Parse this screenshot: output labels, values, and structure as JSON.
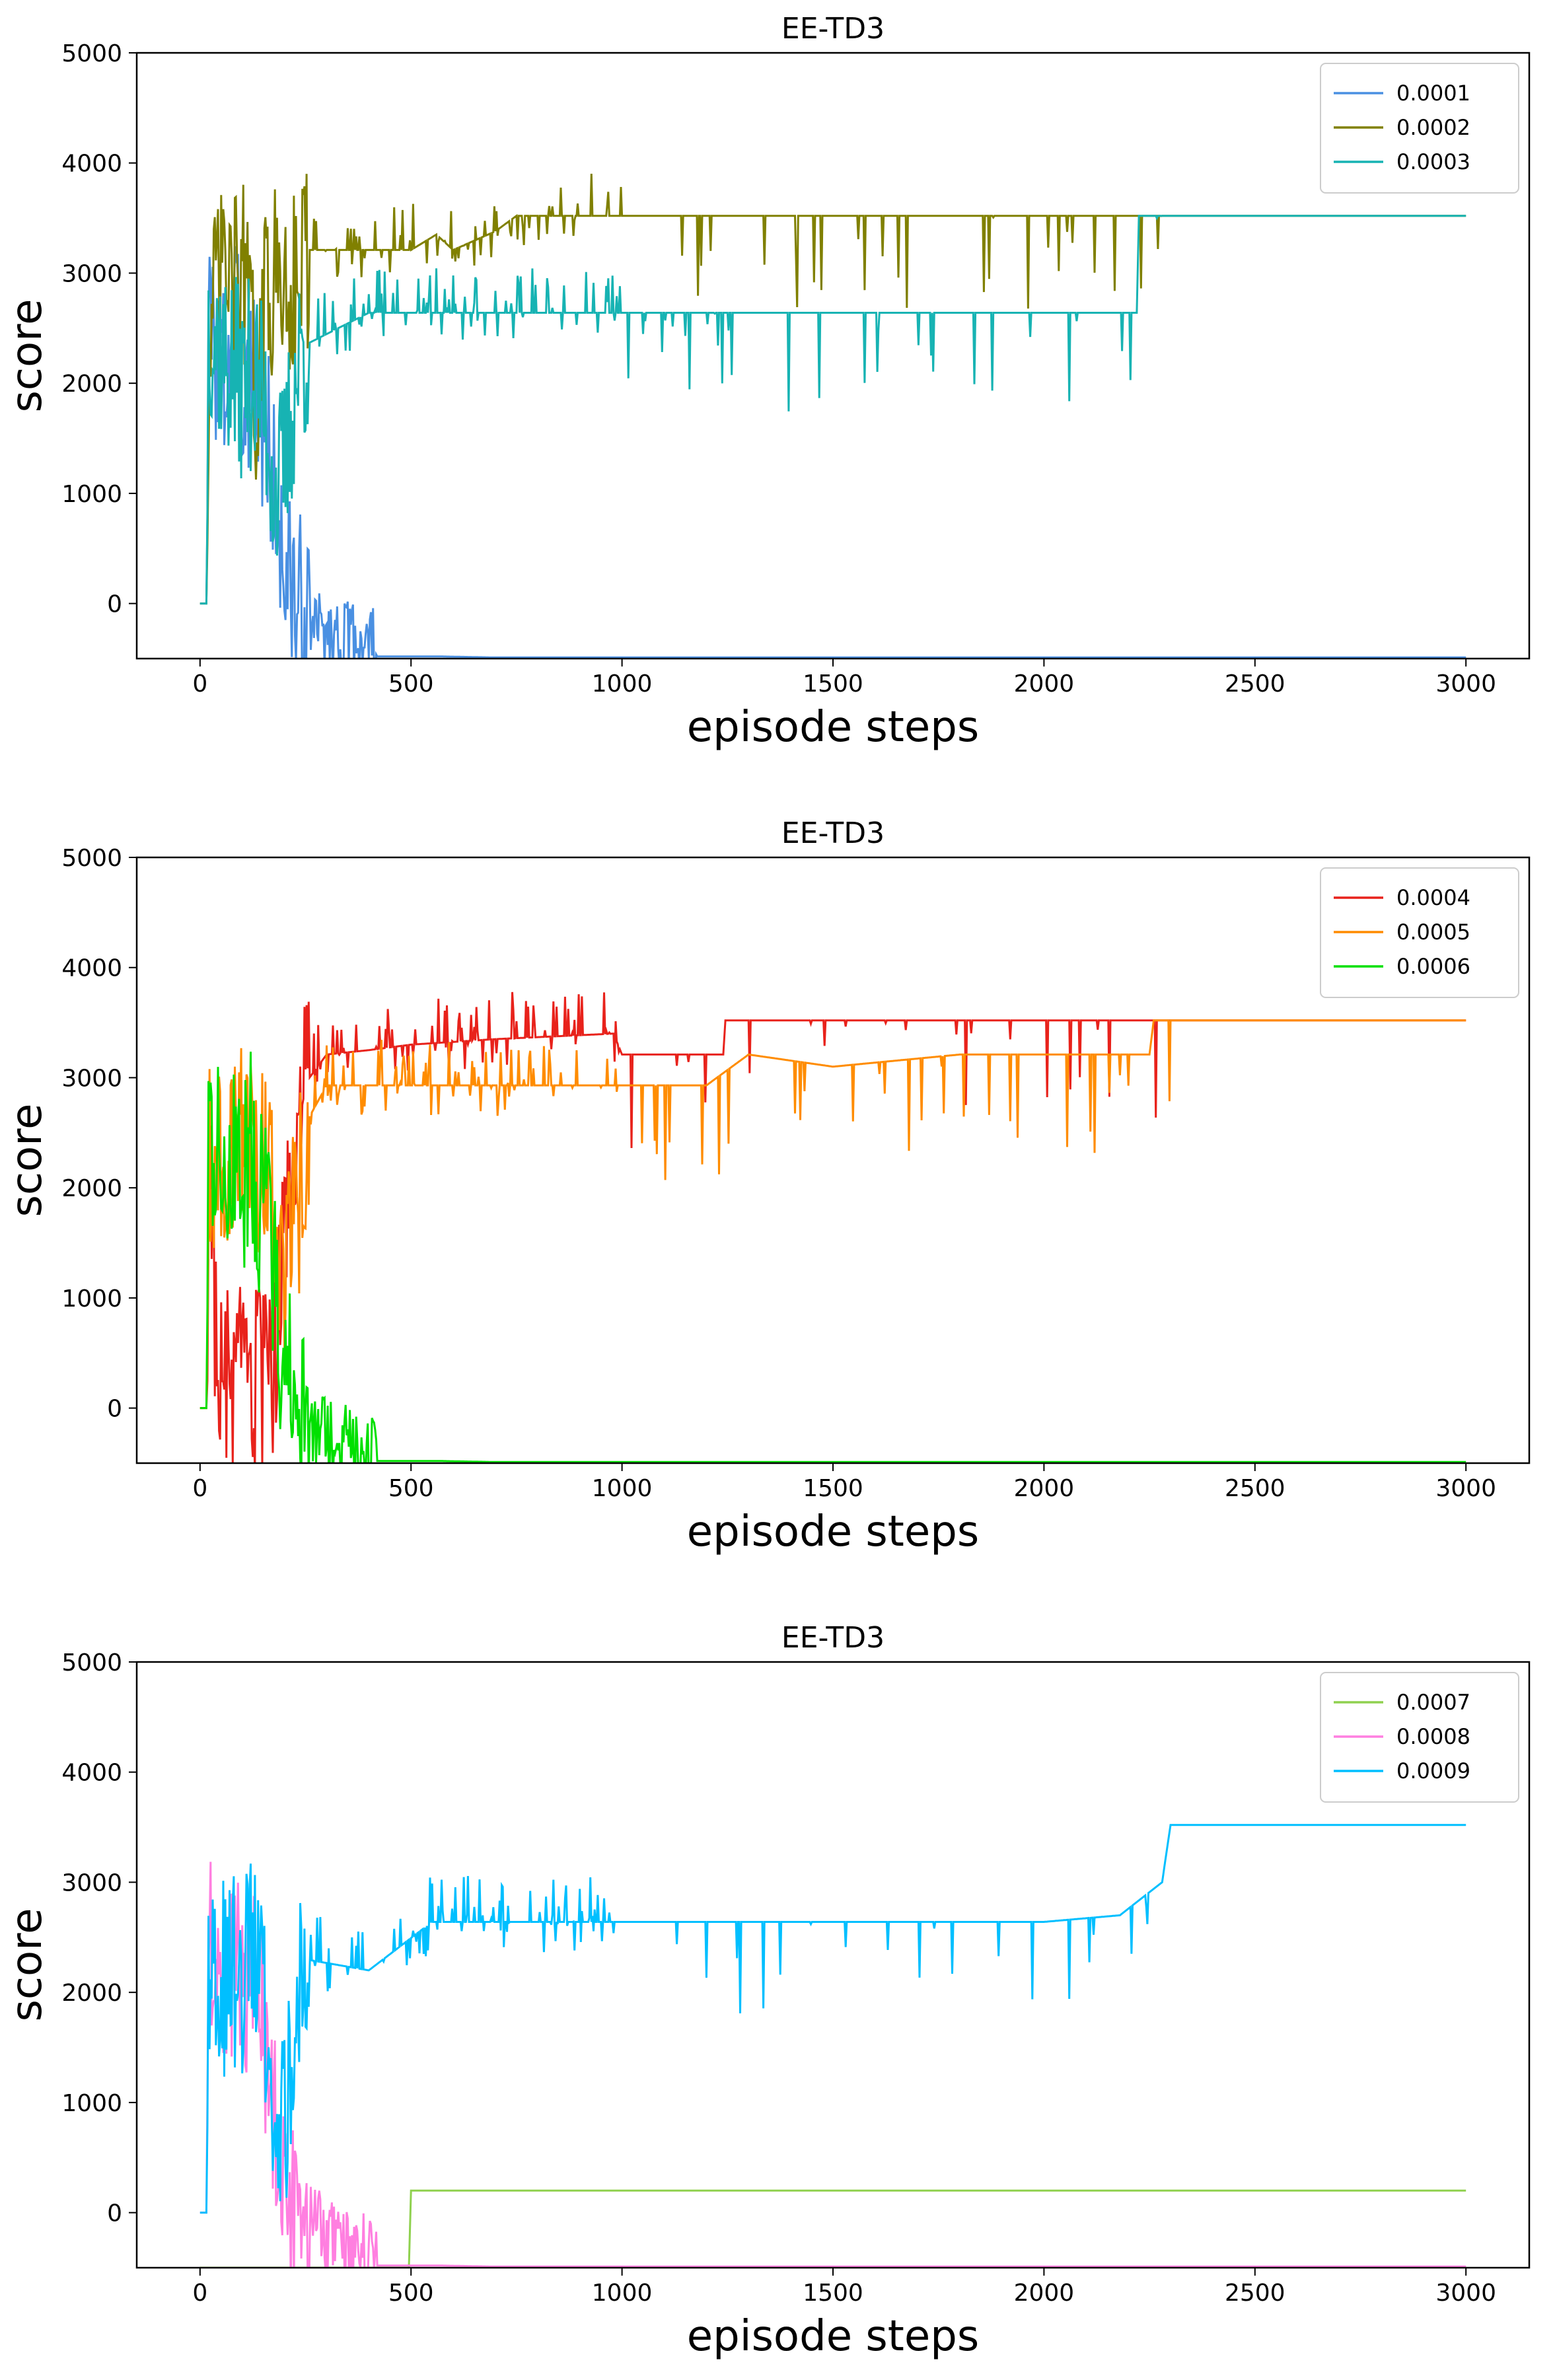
{
  "chart_data": [
    {
      "type": "line",
      "title": "EE-TD3",
      "xlabel": "episode steps",
      "ylabel": "score",
      "xlim": [
        -150,
        3150
      ],
      "ylim": [
        -500,
        5000
      ],
      "xticks": [
        0,
        500,
        1000,
        1500,
        2000,
        2500,
        3000
      ],
      "yticks": [
        0,
        1000,
        2000,
        3000,
        4000,
        5000
      ],
      "legend_position": "top-right",
      "series": [
        {
          "name": "0.0001",
          "color": "#4a90e2",
          "pattern": "collapse",
          "x": [
            0,
            15,
            20,
            40,
            60,
            80,
            100,
            120,
            140,
            160,
            180,
            200,
            230,
            260,
            300,
            340,
            400,
            560,
            700,
            920,
            1490,
            2940,
            3000
          ],
          "y": [
            0,
            0,
            2500,
            2300,
            2000,
            2700,
            1900,
            2200,
            1800,
            1500,
            900,
            300,
            0,
            -300,
            -400,
            -450,
            -480,
            -480,
            -490,
            -490,
            -490,
            -490,
            -490
          ]
        },
        {
          "name": "0.0002",
          "color": "#808000",
          "pattern": "plateau",
          "x": [
            0,
            15,
            20,
            40,
            60,
            80,
            100,
            120,
            140,
            155,
            160,
            230,
            240,
            500,
            560,
            600,
            700,
            750,
            900,
            3000
          ],
          "y": [
            0,
            0,
            2000,
            2900,
            3000,
            2800,
            3100,
            2400,
            1700,
            2900,
            2930,
            2930,
            3210,
            3210,
            3350,
            3210,
            3380,
            3520,
            3520,
            3520
          ]
        },
        {
          "name": "0.0003",
          "color": "#17b3b3",
          "pattern": "plateau",
          "x": [
            0,
            15,
            20,
            40,
            60,
            80,
            100,
            120,
            140,
            160,
            180,
            200,
            220,
            240,
            250,
            400,
            1000,
            1500,
            2220,
            2225,
            3000
          ],
          "y": [
            0,
            0,
            2600,
            2400,
            2200,
            2100,
            2000,
            2100,
            2000,
            1600,
            1000,
            1200,
            1800,
            2300,
            2350,
            2640,
            2640,
            2640,
            2640,
            3520,
            3520
          ]
        }
      ]
    },
    {
      "type": "line",
      "title": "EE-TD3",
      "xlabel": "episode steps",
      "ylabel": "score",
      "xlim": [
        -150,
        3150
      ],
      "ylim": [
        -500,
        5000
      ],
      "xticks": [
        0,
        500,
        1000,
        1500,
        2000,
        2500,
        3000
      ],
      "yticks": [
        0,
        1000,
        2000,
        3000,
        4000,
        5000
      ],
      "legend_position": "top-right",
      "series": [
        {
          "name": "0.0004",
          "color": "#e8221b",
          "pattern": "plateau",
          "x": [
            0,
            15,
            25,
            40,
            170,
            200,
            240,
            300,
            400,
            500,
            700,
            980,
            1000,
            1240,
            1245,
            2240,
            2250,
            3000
          ],
          "y": [
            0,
            0,
            2600,
            200,
            200,
            1500,
            2900,
            3210,
            3250,
            3300,
            3350,
            3400,
            3210,
            3210,
            3520,
            3520,
            3520,
            3520
          ]
        },
        {
          "name": "0.0005",
          "color": "#ff8c00",
          "pattern": "plateau",
          "x": [
            0,
            15,
            20,
            60,
            120,
            170,
            200,
            230,
            260,
            300,
            500,
            800,
            1000,
            1200,
            1300,
            1500,
            1800,
            2250,
            2260,
            2330,
            3000
          ],
          "y": [
            0,
            0,
            2200,
            2300,
            2500,
            2000,
            1200,
            1800,
            2650,
            2930,
            2930,
            2930,
            2930,
            2930,
            3210,
            3100,
            3210,
            3210,
            3520,
            3520,
            3520
          ]
        },
        {
          "name": "0.0006",
          "color": "#00e000",
          "pattern": "collapse",
          "x": [
            0,
            15,
            20,
            40,
            60,
            80,
            100,
            120,
            140,
            160,
            180,
            200,
            230,
            260,
            300,
            340,
            400,
            560,
            700,
            920,
            1490,
            2940,
            3000
          ],
          "y": [
            0,
            0,
            2600,
            2300,
            2100,
            2500,
            2000,
            2400,
            1900,
            1700,
            1000,
            300,
            0,
            -300,
            -400,
            -450,
            -480,
            -480,
            -490,
            -490,
            -490,
            -490,
            -490
          ]
        }
      ]
    },
    {
      "type": "line",
      "title": "EE-TD3",
      "xlabel": "episode steps",
      "ylabel": "score",
      "xlim": [
        -150,
        3150
      ],
      "ylim": [
        -500,
        5000
      ],
      "xticks": [
        0,
        500,
        1000,
        1500,
        2000,
        2500,
        3000
      ],
      "yticks": [
        0,
        1000,
        2000,
        3000,
        4000,
        5000
      ],
      "legend_position": "top-right",
      "series": [
        {
          "name": "0.0007",
          "color": "#8fd14f",
          "pattern": "none",
          "x": [
            0,
            490,
            495,
            500,
            3000
          ],
          "y": [
            -500,
            -500,
            -500,
            200,
            200
          ]
        },
        {
          "name": "0.0008",
          "color": "#ff7fe0",
          "pattern": "collapse",
          "x": [
            0,
            15,
            20,
            40,
            60,
            80,
            100,
            120,
            140,
            160,
            180,
            200,
            230,
            260,
            300,
            340,
            400,
            560,
            700,
            920,
            1490,
            2940,
            3000
          ],
          "y": [
            0,
            0,
            2700,
            2400,
            2200,
            2300,
            2100,
            2200,
            1800,
            1400,
            800,
            200,
            0,
            -200,
            -350,
            -450,
            -480,
            -480,
            -490,
            -490,
            -490,
            -490,
            -490
          ]
        },
        {
          "name": "0.0009",
          "color": "#00bfff",
          "pattern": "plateau",
          "x": [
            0,
            15,
            20,
            40,
            60,
            80,
            100,
            120,
            140,
            160,
            180,
            200,
            230,
            250,
            400,
            550,
            1000,
            1500,
            2000,
            2180,
            2280,
            2300,
            3000
          ],
          "y": [
            0,
            0,
            2200,
            2300,
            2100,
            2200,
            2000,
            2400,
            2100,
            1700,
            900,
            700,
            1800,
            2300,
            2200,
            2640,
            2640,
            2640,
            2640,
            2700,
            3000,
            3520,
            3520
          ]
        }
      ]
    }
  ]
}
